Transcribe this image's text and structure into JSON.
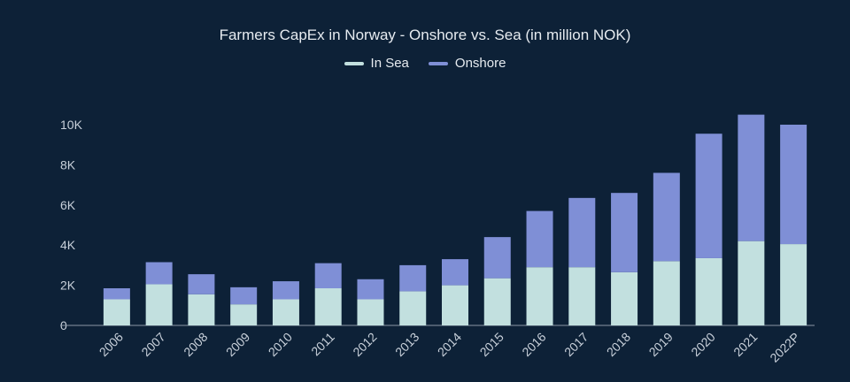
{
  "chart_data": {
    "type": "bar",
    "stacked": true,
    "title": "Farmers CapEx in Norway - Onshore vs. Sea (in million NOK)",
    "xlabel": "",
    "ylabel": "",
    "categories": [
      "2006",
      "2007",
      "2008",
      "2009",
      "2010",
      "2011",
      "2012",
      "2013",
      "2014",
      "2015",
      "2016",
      "2017",
      "2018",
      "2019",
      "2020",
      "2021",
      "2022P"
    ],
    "series": [
      {
        "name": "In Sea",
        "color": "#c2e0df",
        "values": [
          1300,
          2050,
          1550,
          1050,
          1300,
          1850,
          1300,
          1700,
          2000,
          2350,
          2900,
          2900,
          2650,
          3200,
          3350,
          4200,
          4050
        ]
      },
      {
        "name": "Onshore",
        "color": "#7f8fd6",
        "values": [
          550,
          1100,
          1000,
          850,
          900,
          1250,
          1000,
          1300,
          1300,
          2050,
          2800,
          3450,
          3950,
          4400,
          6200,
          6300,
          5950
        ]
      }
    ],
    "ylim": [
      0,
      10500
    ],
    "yticks": [
      0,
      2000,
      4000,
      6000,
      8000,
      10000
    ],
    "ytick_labels": [
      "0",
      "2K",
      "4K",
      "6K",
      "8K",
      "10K"
    ],
    "grid": false,
    "legend_position": "top-center"
  }
}
